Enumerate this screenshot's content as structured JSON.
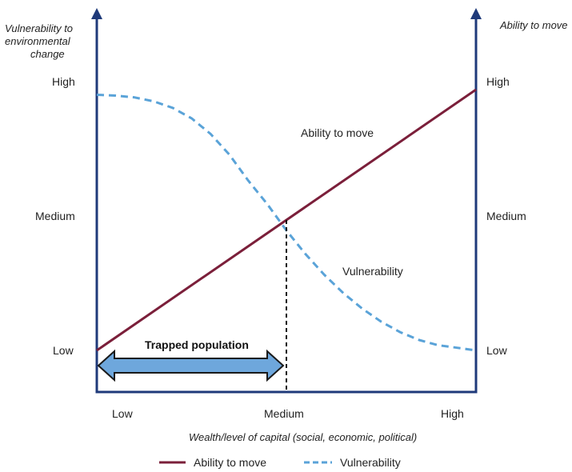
{
  "chart_data": {
    "type": "line",
    "left_axis_title": [
      "Vulnerability to",
      "environmental",
      "change"
    ],
    "right_axis_title": "Ability to move",
    "xlabel": "Wealth/level of capital (social, economic, political)",
    "x_ticks": [
      "Low",
      "Medium",
      "High"
    ],
    "y_left_ticks": [
      "High",
      "Medium",
      "Low"
    ],
    "y_right_ticks": [
      "High",
      "Medium",
      "Low"
    ],
    "xlim": [
      0,
      1
    ],
    "ylim": [
      0,
      1
    ],
    "series": [
      {
        "name": "Ability to move",
        "style": "solid",
        "color": "#7b1f3a",
        "x": [
          0,
          1
        ],
        "y": [
          0.0,
          1.0
        ]
      },
      {
        "name": "Vulnerability",
        "style": "dashed",
        "color": "#5aa3d8",
        "x": [
          0.0,
          0.05,
          0.1,
          0.15,
          0.2,
          0.25,
          0.3,
          0.35,
          0.4,
          0.45,
          0.5,
          0.55,
          0.6,
          0.65,
          0.7,
          0.75,
          0.8,
          0.85,
          0.9,
          0.95,
          1.0
        ],
        "y": [
          0.98,
          0.977,
          0.97,
          0.955,
          0.93,
          0.89,
          0.83,
          0.75,
          0.65,
          0.56,
          0.46,
          0.37,
          0.29,
          0.22,
          0.16,
          0.11,
          0.07,
          0.04,
          0.02,
          0.01,
          0.0
        ]
      }
    ],
    "annotations": {
      "ability_label": "Ability to move",
      "vulnerability_label": "Vulnerability",
      "trapped_label": "Trapped population",
      "intersection_x": 0.5
    },
    "colors": {
      "axis": "#1f3a7a",
      "arrow_fill": "#6ea7dc",
      "arrow_stroke": "#1a1a1a"
    },
    "legend_position": "bottom-center"
  }
}
